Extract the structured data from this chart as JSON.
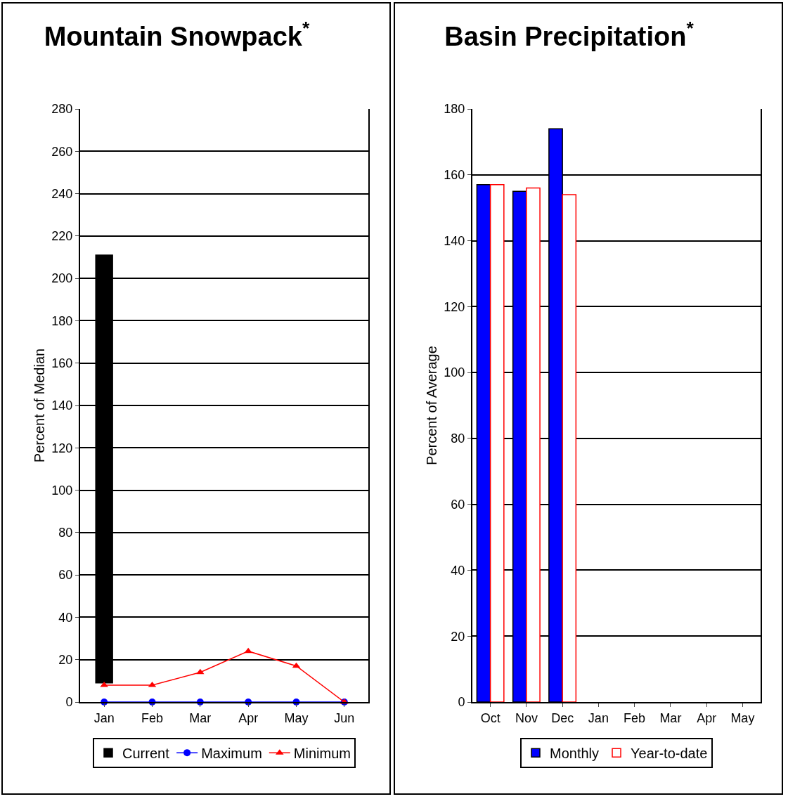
{
  "chart_data": [
    {
      "type": "bar",
      "title": "Mountain Snowpack$^{*}$",
      "ylabel": "Percent of Median",
      "categories": [
        "Jan",
        "Feb",
        "Mar",
        "Apr",
        "May",
        "Jun"
      ],
      "ylim": [
        0,
        280
      ],
      "yticks": [
        0,
        20,
        40,
        60,
        80,
        100,
        120,
        140,
        160,
        180,
        200,
        220,
        240,
        260,
        280
      ],
      "grid": "y",
      "legend": "bottom",
      "series": [
        {
          "name": "Current",
          "color": "#000000",
          "base": [
            9,
            null,
            null,
            null,
            null,
            null
          ],
          "values": [
            202,
            null,
            null,
            null,
            null,
            null
          ]
        },
        {
          "name": "Maximum",
          "type": "line",
          "color": "#0000ff",
          "marker": "circle",
          "values": [
            0,
            0,
            0,
            0,
            0,
            0
          ]
        },
        {
          "name": "Minimum",
          "type": "line",
          "color": "#ff0000",
          "marker": "triangle",
          "values": [
            8,
            8,
            14,
            24,
            17,
            0
          ]
        }
      ]
    },
    {
      "type": "bar",
      "title": "Basin Precipitation$^{*}$",
      "ylabel": "Percent of Average",
      "categories": [
        "Oct",
        "Nov",
        "Dec",
        "Jan",
        "Feb",
        "Mar",
        "Apr",
        "May"
      ],
      "ylim": [
        0,
        180
      ],
      "yticks": [
        0,
        20,
        40,
        60,
        80,
        100,
        120,
        140,
        160,
        180
      ],
      "grid": "y",
      "legend": "bottom",
      "series": [
        {
          "name": "Monthly",
          "color": "#0000ff",
          "values": [
            157,
            155,
            174,
            null,
            null,
            null,
            null,
            null
          ]
        },
        {
          "name": "Year-to-date",
          "color": "#ffffff",
          "values": [
            157,
            156,
            154,
            null,
            null,
            null,
            null,
            null
          ]
        }
      ]
    }
  ]
}
